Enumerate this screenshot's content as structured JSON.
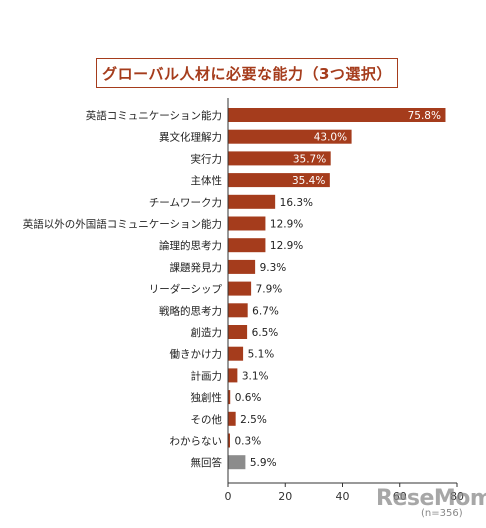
{
  "chart_data": {
    "type": "bar",
    "orientation": "horizontal",
    "title": "グローバル人材に必要な能力（3つ選択）",
    "categories": [
      "英語コミュニケーション能力",
      "異文化理解力",
      "実行力",
      "主体性",
      "チームワーク力",
      "英語以外の外国語コミュニケーション能力",
      "論理的思考力",
      "課題発見力",
      "リーダーシップ",
      "戦略的思考力",
      "創造力",
      "働きかけ力",
      "計画力",
      "独創性",
      "その他",
      "わからない",
      "無回答"
    ],
    "values": [
      75.8,
      43.0,
      35.7,
      35.4,
      16.3,
      12.9,
      12.9,
      9.3,
      7.9,
      6.7,
      6.5,
      5.1,
      3.1,
      0.6,
      2.5,
      0.3,
      5.9
    ],
    "value_labels": [
      "75.8%",
      "43.0%",
      "35.7%",
      "35.4%",
      "16.3%",
      "12.9%",
      "12.9%",
      "9.3%",
      "7.9%",
      "6.7%",
      "6.5%",
      "5.1%",
      "3.1%",
      "0.6%",
      "2.5%",
      "0.3%",
      "5.9%"
    ],
    "label_inside": [
      true,
      true,
      true,
      true,
      false,
      false,
      false,
      false,
      false,
      false,
      false,
      false,
      false,
      false,
      false,
      false,
      false
    ],
    "bar_colors": [
      "#a53c1c",
      "#a53c1c",
      "#a53c1c",
      "#a53c1c",
      "#a53c1c",
      "#a53c1c",
      "#a53c1c",
      "#a53c1c",
      "#a53c1c",
      "#a53c1c",
      "#a53c1c",
      "#a53c1c",
      "#a53c1c",
      "#a53c1c",
      "#a53c1c",
      "#a53c1c",
      "#8c8c8c"
    ],
    "xlim": [
      0,
      80
    ],
    "xticks": [
      "0",
      "20",
      "40",
      "60",
      "80"
    ],
    "grid": false,
    "note": "(n=356)"
  },
  "watermark": "ReseMom",
  "colors": {
    "accent": "#a53c1c",
    "no_answer": "#8c8c8c"
  }
}
